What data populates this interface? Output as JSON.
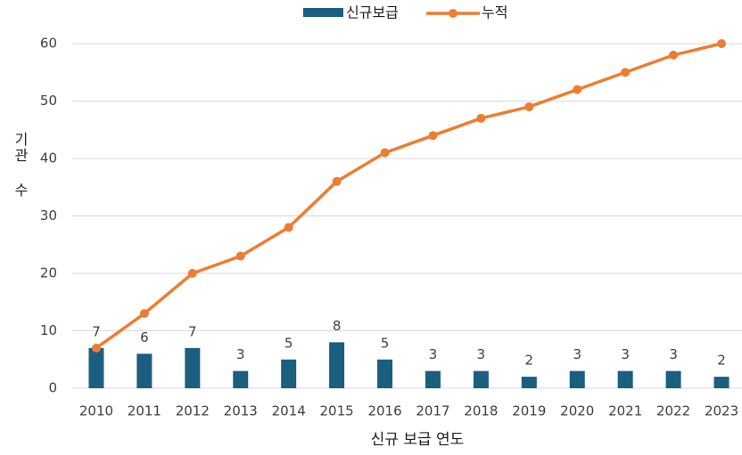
{
  "chart_data": {
    "type": "bar_line",
    "categories": [
      "2010",
      "2011",
      "2012",
      "2013",
      "2014",
      "2015",
      "2016",
      "2017",
      "2018",
      "2019",
      "2020",
      "2021",
      "2022",
      "2023"
    ],
    "series": [
      {
        "name": "신규보급",
        "type": "bar",
        "color": "#1b5e80",
        "values": [
          7,
          6,
          7,
          3,
          5,
          8,
          5,
          3,
          3,
          2,
          3,
          3,
          3,
          2
        ]
      },
      {
        "name": "누적",
        "type": "line",
        "color": "#ed7d31",
        "values": [
          7,
          13,
          20,
          23,
          28,
          36,
          41,
          44,
          47,
          49,
          52,
          55,
          58,
          60
        ]
      }
    ],
    "x_label": "신규 보급 연도",
    "y_label": "기관 수",
    "ylim": [
      0,
      60
    ],
    "yticks": [
      0,
      10,
      20,
      30,
      40,
      50,
      60
    ],
    "grid": true,
    "legend": "top",
    "data_labels": [
      "신규보급"
    ]
  }
}
